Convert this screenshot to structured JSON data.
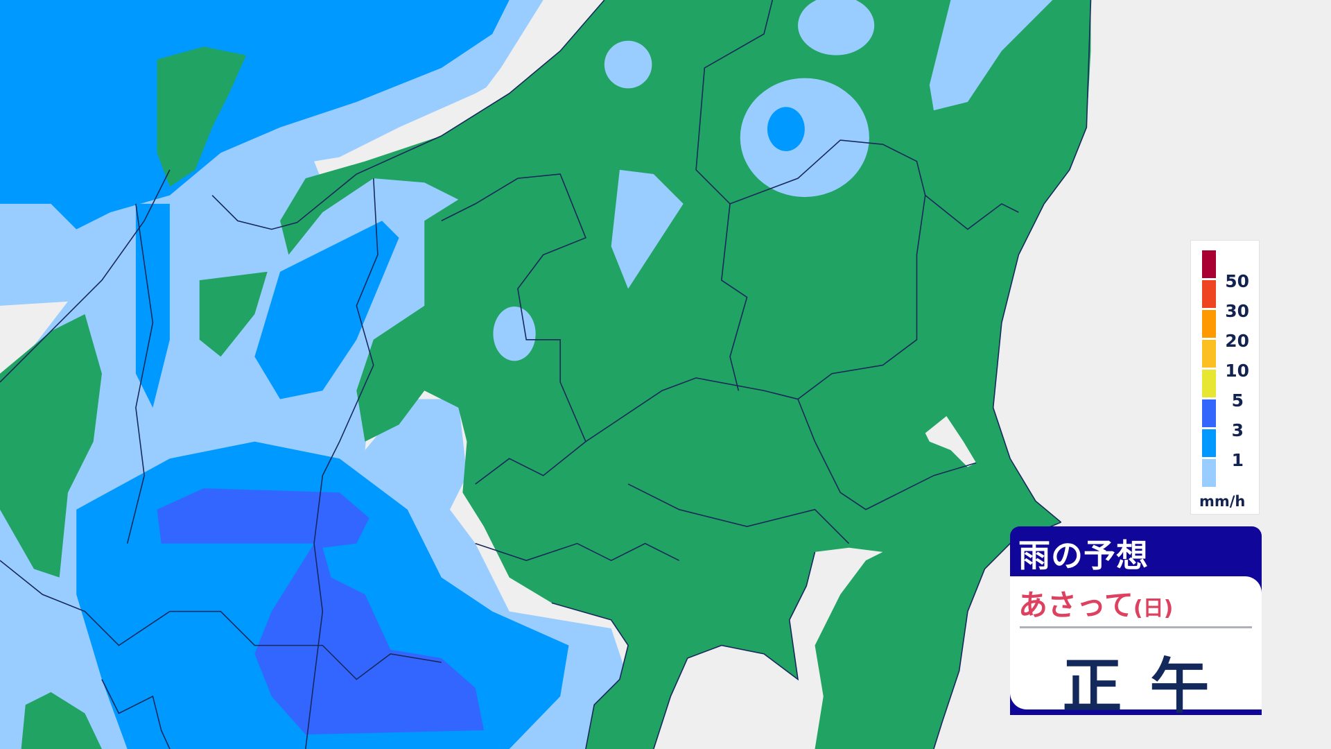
{
  "panel": {
    "title": "雨の予想",
    "day": "あさって",
    "day_paren": "(日)",
    "time": "正午"
  },
  "legend": {
    "unit": "mm/h",
    "labels": [
      "50",
      "30",
      "20",
      "10",
      "5",
      "3",
      "1"
    ],
    "colors": [
      "#a80030",
      "#ee4422",
      "#ff9900",
      "#fbbf22",
      "#e6e633",
      "#3366ff",
      "#0099ff",
      "#99ccff"
    ]
  },
  "map_colors": {
    "sea": "#efefef",
    "no_rain_land": "#21a363",
    "rain_0_1": "#99ccff",
    "rain_1_3": "#0099ff",
    "rain_3_5": "#3366ff",
    "boundary": "#17285a"
  }
}
